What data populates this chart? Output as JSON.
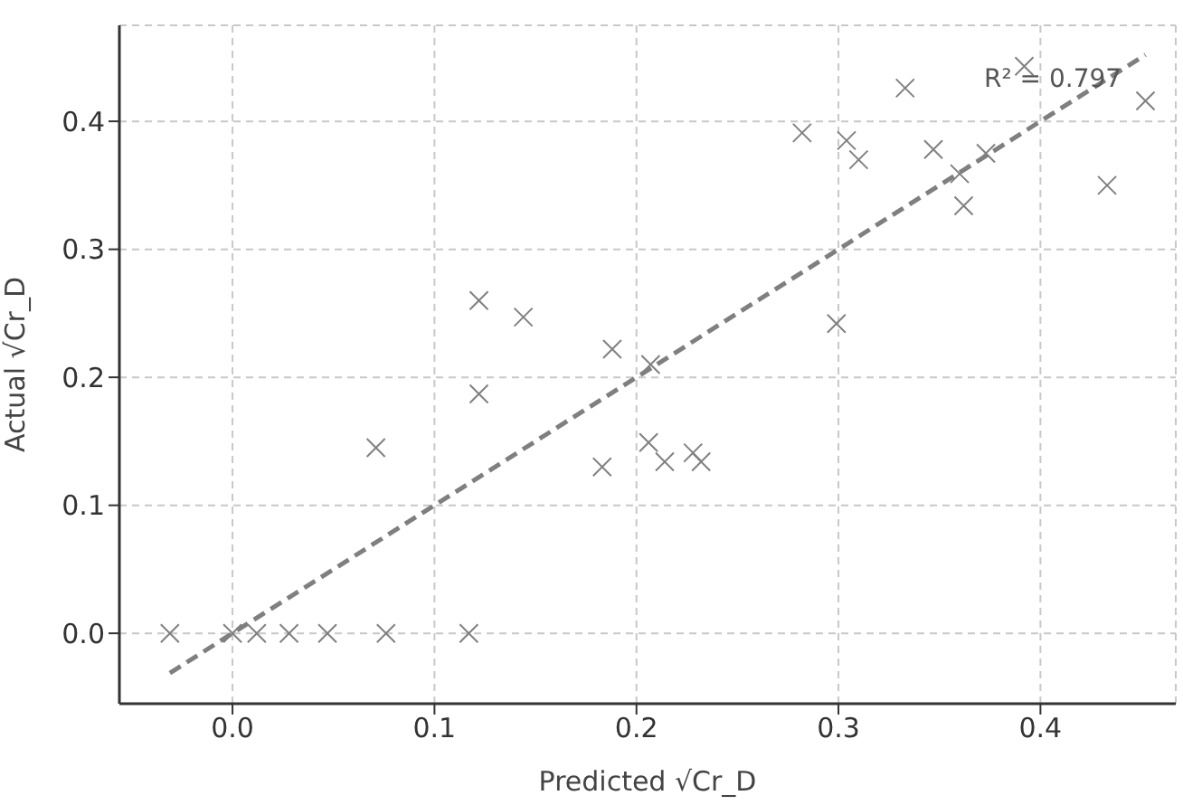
{
  "chart_data": {
    "type": "scatter",
    "xlabel": "Predicted √Cr_D",
    "ylabel": "Actual √Cr_D",
    "xlim": [
      -0.056,
      0.467
    ],
    "ylim": [
      -0.055,
      0.475
    ],
    "xticks": [
      {
        "value": 0,
        "label": "0.0"
      },
      0.1,
      0.2,
      0.3,
      0.4
    ],
    "yticks": [
      {
        "value": 0,
        "label": "0.0"
      },
      0.1,
      0.2,
      0.3,
      0.4
    ],
    "grid": true,
    "annotations": [
      "R² = 0.797"
    ],
    "series": [
      {
        "marker": "cross",
        "color": "#808080",
        "x": [
          -0.031,
          0.0,
          0.012,
          0.028,
          0.047,
          0.076,
          0.117,
          0.071,
          0.122,
          0.122,
          0.144,
          0.188,
          0.183,
          0.207,
          0.206,
          0.214,
          0.228,
          0.232,
          0.299,
          0.282,
          0.304,
          0.31,
          0.333,
          0.347,
          0.36,
          0.362,
          0.373,
          0.392,
          0.433,
          0.452
        ],
        "values": [
          0,
          0,
          0,
          0,
          0,
          0,
          0,
          0.145,
          0.26,
          0.187,
          0.247,
          0.222,
          0.13,
          0.21,
          0.149,
          0.134,
          0.141,
          0.134,
          0.242,
          0.391,
          0.385,
          0.37,
          0.426,
          0.378,
          0.359,
          0.334,
          0.375,
          0.443,
          0.35,
          0.416
        ]
      },
      {
        "type": "line",
        "marker": "none",
        "color": "#7f7f7f",
        "line_style": "dashed",
        "x": [
          -0.031,
          0.452
        ],
        "values": [
          -0.031,
          0.452
        ]
      }
    ]
  }
}
